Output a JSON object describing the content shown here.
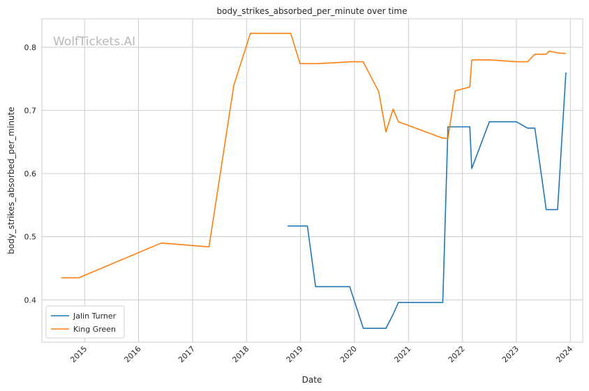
{
  "chart_data": {
    "type": "line",
    "title": "body_strikes_absorbed_per_minute over time",
    "xlabel": "Date",
    "ylabel": "body_strikes_absorbed_per_minute",
    "watermark": "WolfTickets.AI",
    "xlim": [
      "2014-03-18",
      "2024-03-25"
    ],
    "ylim": [
      0.333,
      0.845
    ],
    "xticks": [
      "2015-01-01",
      "2016-01-01",
      "2017-01-01",
      "2018-01-01",
      "2019-01-01",
      "2020-01-01",
      "2021-01-01",
      "2022-01-01",
      "2023-01-01",
      "2024-01-01"
    ],
    "xtick_labels": [
      "2015",
      "2016",
      "2017",
      "2018",
      "2019",
      "2020",
      "2021",
      "2022",
      "2023",
      "2024"
    ],
    "yticks": [
      0.4,
      0.5,
      0.6,
      0.7,
      0.8
    ],
    "ytick_labels": [
      "0.4",
      "0.5",
      "0.6",
      "0.7",
      "0.8"
    ],
    "grid": true,
    "legend_position": "lower-left",
    "series": [
      {
        "name": "Jalin Turner",
        "color": "#1f77b4",
        "points": [
          [
            "2018-10-06",
            0.517
          ],
          [
            "2019-02-17",
            0.517
          ],
          [
            "2019-04-13",
            0.421
          ],
          [
            "2019-11-30",
            0.421
          ],
          [
            "2020-03-01",
            0.355
          ],
          [
            "2020-08-01",
            0.355
          ],
          [
            "2020-09-19",
            0.377
          ],
          [
            "2020-10-25",
            0.396
          ],
          [
            "2021-08-21",
            0.396
          ],
          [
            "2021-09-25",
            0.674
          ],
          [
            "2022-02-20",
            0.674
          ],
          [
            "2022-03-05",
            0.608
          ],
          [
            "2022-07-02",
            0.682
          ],
          [
            "2022-12-31",
            0.682
          ],
          [
            "2023-03-18",
            0.672
          ],
          [
            "2023-05-06",
            0.672
          ],
          [
            "2023-07-22",
            0.543
          ],
          [
            "2023-10-07",
            0.543
          ],
          [
            "2023-12-02",
            0.76
          ]
        ]
      },
      {
        "name": "King Green",
        "color": "#ff7f0e",
        "points": [
          [
            "2014-07-26",
            0.435
          ],
          [
            "2014-11-22",
            0.435
          ],
          [
            "2016-06-04",
            0.49
          ],
          [
            "2017-04-22",
            0.484
          ],
          [
            "2017-10-07",
            0.74
          ],
          [
            "2018-01-27",
            0.822
          ],
          [
            "2018-10-27",
            0.822
          ],
          [
            "2018-12-29",
            0.774
          ],
          [
            "2019-04-27",
            0.774
          ],
          [
            "2019-12-14",
            0.777
          ],
          [
            "2020-02-29",
            0.777
          ],
          [
            "2020-06-13",
            0.73
          ],
          [
            "2020-08-01",
            0.666
          ],
          [
            "2020-09-19",
            0.702
          ],
          [
            "2020-10-25",
            0.682
          ],
          [
            "2021-08-21",
            0.656
          ],
          [
            "2021-09-25",
            0.656
          ],
          [
            "2021-11-13",
            0.731
          ],
          [
            "2022-02-20",
            0.737
          ],
          [
            "2022-03-05",
            0.78
          ],
          [
            "2022-07-02",
            0.78
          ],
          [
            "2022-12-31",
            0.777
          ],
          [
            "2023-03-18",
            0.777
          ],
          [
            "2023-05-06",
            0.789
          ],
          [
            "2023-07-22",
            0.789
          ],
          [
            "2023-08-12",
            0.794
          ],
          [
            "2023-10-07",
            0.791
          ],
          [
            "2023-12-02",
            0.79
          ]
        ]
      }
    ]
  }
}
